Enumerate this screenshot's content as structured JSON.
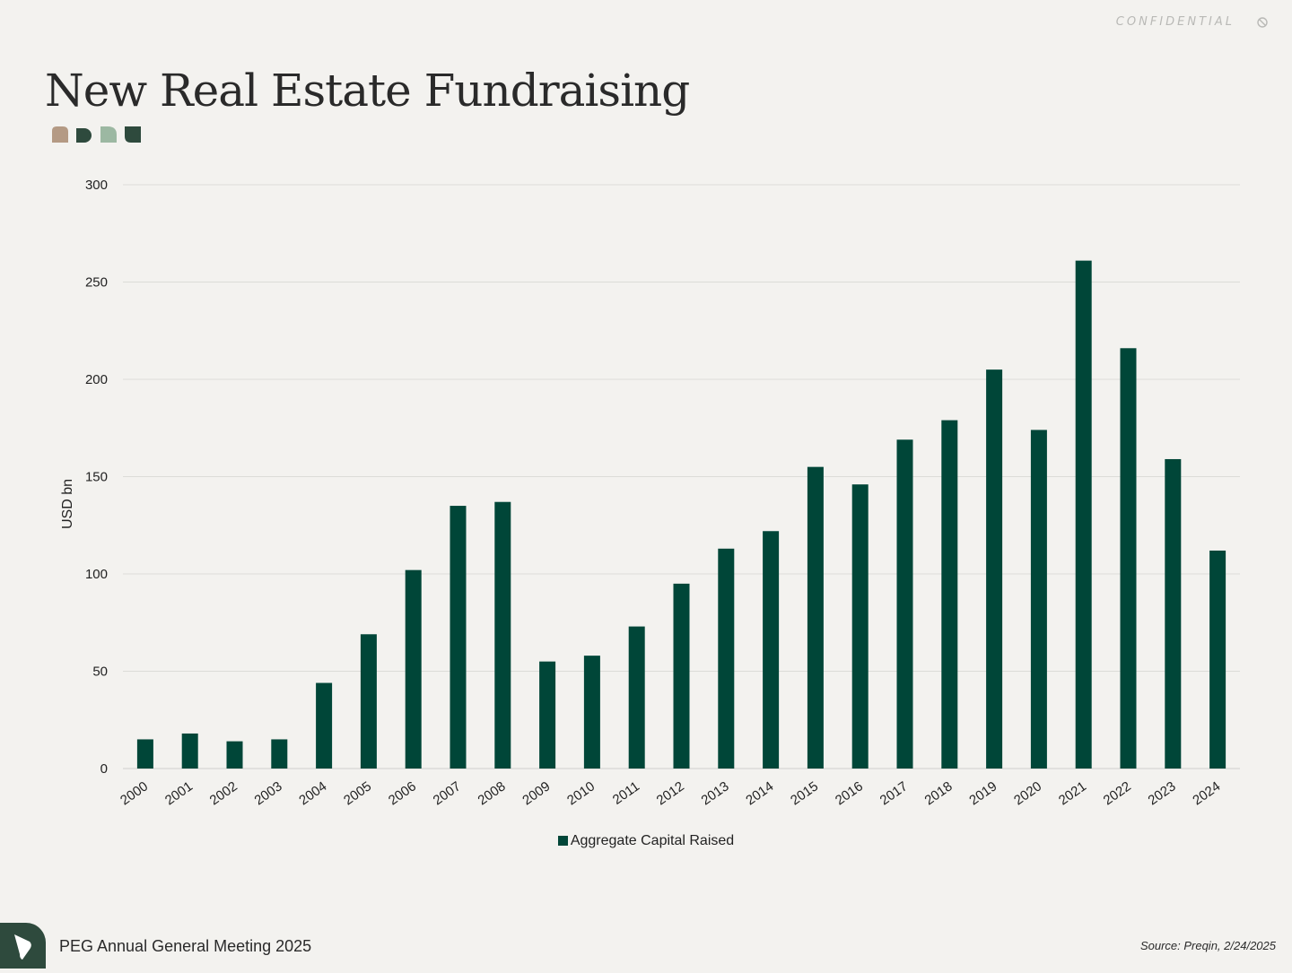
{
  "header": {
    "confidential": "CONFIDENTIAL",
    "title": "New Real Estate Fundraising",
    "brand_colors": [
      "#b49a84",
      "#2e4a3d",
      "#9cb8a2",
      "#2e4a3d"
    ]
  },
  "chart_data": {
    "type": "bar",
    "title": "New Real Estate Fundraising",
    "xlabel": "",
    "ylabel": "USD bn",
    "ylim": [
      0,
      300
    ],
    "yticks": [
      0,
      50,
      100,
      150,
      200,
      250,
      300
    ],
    "grid": true,
    "bar_color": "#004638",
    "categories": [
      "2000",
      "2001",
      "2002",
      "2003",
      "2004",
      "2005",
      "2006",
      "2007",
      "2008",
      "2009",
      "2010",
      "2011",
      "2012",
      "2013",
      "2014",
      "2015",
      "2016",
      "2017",
      "2018",
      "2019",
      "2020",
      "2021",
      "2022",
      "2023",
      "2024"
    ],
    "series": [
      {
        "name": "Aggregate Capital Raised",
        "values": [
          15,
          18,
          14,
          15,
          44,
          69,
          102,
          135,
          137,
          55,
          58,
          73,
          95,
          113,
          122,
          155,
          146,
          169,
          179,
          205,
          174,
          261,
          216,
          159,
          112
        ]
      }
    ],
    "legend_position": "bottom-center"
  },
  "footer": {
    "event": "PEG Annual General Meeting 2025",
    "source": "Source: Preqin, 2/24/2025"
  }
}
